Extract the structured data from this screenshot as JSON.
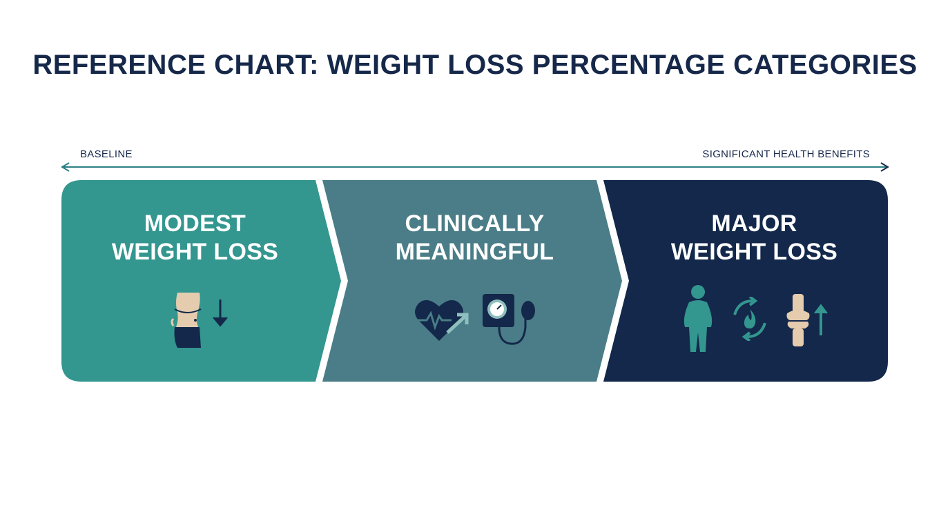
{
  "title": "REFERENCE CHART: WEIGHT LOSS PERCENTAGE CATEGORIES",
  "axis": {
    "left_label": "BASELINE",
    "right_label": "SIGNIFICANT HEALTH BENEFITS",
    "color": "#2a7f86"
  },
  "segments": [
    {
      "line1": "MODEST",
      "line2": "WEIGHT LOSS",
      "color": "#33968f",
      "icons": [
        "waist-measure-icon",
        "arrow-down-icon"
      ]
    },
    {
      "line1": "CLINICALLY",
      "line2": "MEANINGFUL",
      "color": "#4a7d87",
      "icons": [
        "heart-rate-icon",
        "blood-pressure-monitor-icon"
      ]
    },
    {
      "line1": "MAJOR",
      "line2": "WEIGHT LOSS",
      "color": "#13284a",
      "icons": [
        "person-silhouette-icon",
        "metabolism-cycle-icon",
        "knee-joint-icon",
        "arrow-up-icon"
      ]
    }
  ]
}
